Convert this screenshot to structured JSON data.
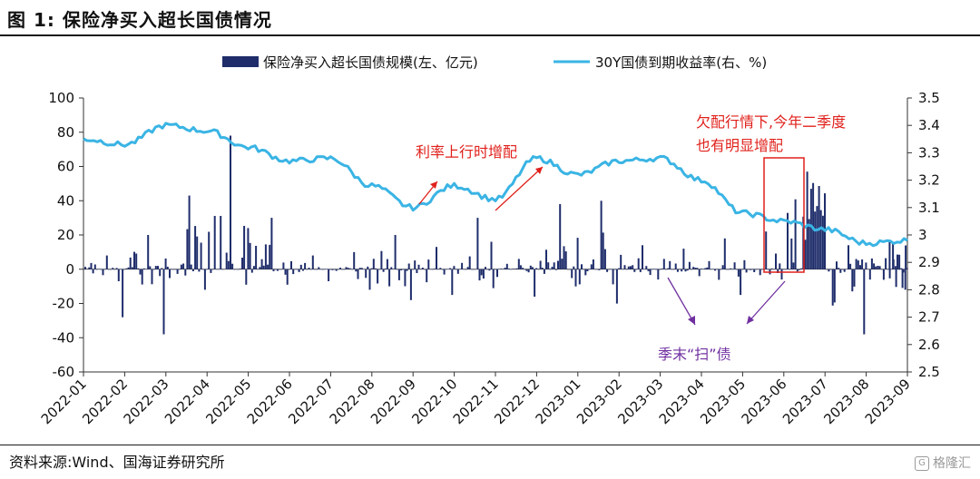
{
  "figure": {
    "title": "图 1:  保险净买入超长国债情况",
    "source": "资料来源:Wind、国海证券研究所"
  },
  "colors": {
    "bars": "#1f2d6b",
    "line": "#3ab4e4",
    "annotation_red": "#e0201b",
    "annotation_purple": "#7030a0"
  },
  "chart_data": {
    "type": "bar+line",
    "title": "",
    "legend": [
      "保险净买入超长国债规模(左、亿元)",
      "30Y国债到期收益率(右、%)"
    ],
    "legend_position": "top",
    "x_ticks": [
      "2022-01",
      "2022-02",
      "2022-03",
      "2022-04",
      "2022-05",
      "2022-06",
      "2022-07",
      "2022-08",
      "2022-09",
      "2022-10",
      "2022-11",
      "2022-12",
      "2023-01",
      "2023-02",
      "2023-03",
      "2023-04",
      "2023-05",
      "2023-06",
      "2023-07",
      "2023-08",
      "2023-09"
    ],
    "y_left": {
      "min": -60,
      "max": 100,
      "step": 20,
      "ticks": [
        "100",
        "80",
        "60",
        "40",
        "20",
        "0",
        "-20",
        "-40",
        "-60"
      ]
    },
    "y_right": {
      "min": 2.5,
      "max": 3.5,
      "step": 0.1,
      "ticks": [
        "3.5",
        "3.4",
        "3.3",
        "3.2",
        "3.1",
        "3",
        "2.9",
        "2.8",
        "2.7",
        "2.6",
        "2.5"
      ]
    },
    "grid": false,
    "bars_monthly_profile": {
      "name": "保险净买入超长国债规模(左、亿元)",
      "months": [
        "2022-01",
        "2022-02",
        "2022-03",
        "2022-04",
        "2022-05",
        "2022-06",
        "2022-07",
        "2022-08",
        "2022-09",
        "2022-10",
        "2022-11",
        "2022-12",
        "2023-01",
        "2023-02",
        "2023-03",
        "2023-04",
        "2023-05",
        "2023-06",
        "2023-07",
        "2023-08",
        "2023-09"
      ],
      "max_values": [
        8,
        20,
        43,
        78,
        30,
        8,
        10,
        20,
        13,
        30,
        6,
        38,
        40,
        14,
        12,
        18,
        22,
        57,
        14,
        16,
        18
      ],
      "min_values": [
        -28,
        -38,
        -12,
        -9,
        -9,
        -7,
        -12,
        -18,
        -15,
        -11,
        -16,
        -10,
        -20,
        -6,
        -4,
        -15,
        -6,
        -9,
        -38,
        -12,
        -16
      ]
    },
    "line_monthly": {
      "name": "30Y国债到期收益率(右、%)",
      "x": [
        "2022-01",
        "2022-02",
        "2022-03",
        "2022-04",
        "2022-05",
        "2022-06",
        "2022-07",
        "2022-08",
        "2022-09",
        "2022-10",
        "2022-11",
        "2022-12",
        "2023-01",
        "2023-02",
        "2023-03",
        "2023-04",
        "2023-05",
        "2023-06",
        "2023-07",
        "2023-08",
        "2023-09"
      ],
      "y": [
        3.35,
        3.33,
        3.4,
        3.38,
        3.32,
        3.27,
        3.28,
        3.18,
        3.1,
        3.18,
        3.13,
        3.28,
        3.22,
        3.27,
        3.28,
        3.2,
        3.08,
        3.05,
        3.02,
        2.97,
        2.98
      ]
    },
    "annotations": [
      {
        "text": "利率上行时增配",
        "color": "red"
      },
      {
        "text": "欠配行情下,今年二季度",
        "color": "red"
      },
      {
        "text": "也有明显增配",
        "color": "red"
      },
      {
        "text": "季末“扫”债",
        "color": "purple"
      }
    ]
  },
  "watermark": "格隆汇"
}
